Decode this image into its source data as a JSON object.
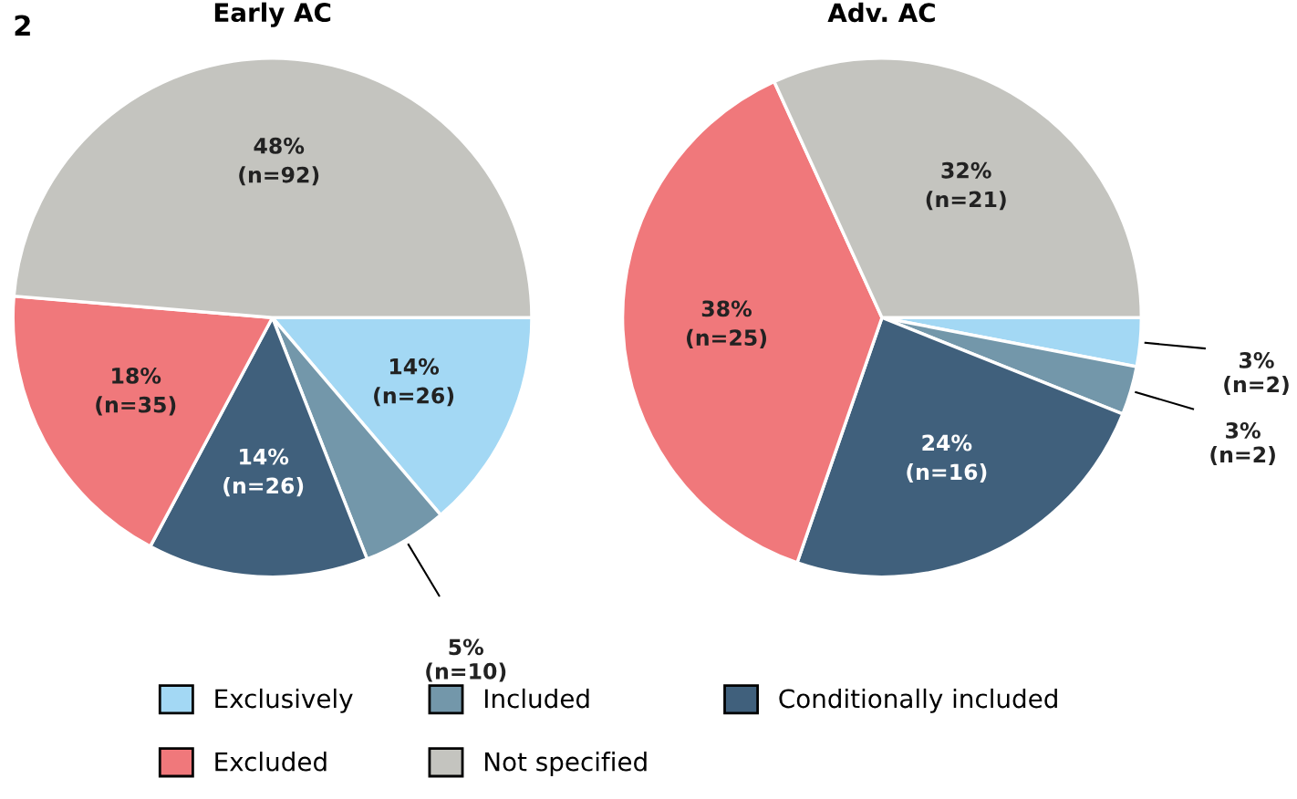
{
  "chart_data": [
    {
      "type": "pie",
      "title": "Early AC",
      "annotations": [
        "2"
      ],
      "legend": "bottom",
      "categories": [
        "Exclusively",
        "Included",
        "Conditionally included",
        "Excluded",
        "Not specified"
      ],
      "values": [
        26,
        10,
        26,
        35,
        92
      ],
      "value_labels": [
        "14%\n(n=26)",
        "5%\n(n=10)",
        "14%\n(n=26)",
        "18%\n(n=35)",
        "48%\n(n=92)"
      ],
      "colors": [
        "#a3d8f4",
        "#7397aa",
        "#40607c",
        "#f0787b",
        "#c4c4bf"
      ]
    },
    {
      "type": "pie",
      "title": "Adv. AC",
      "values": [
        2,
        2,
        16,
        25,
        21
      ],
      "value_labels": [
        "3%\n(n=2)",
        "3%\n(n=2)",
        "24%\n(n=16)",
        "38%\n(n=25)",
        "32%\n(n=21)"
      ],
      "colors": [
        "#a3d8f4",
        "#7397aa",
        "#40607c",
        "#f0787b",
        "#c4c4bf"
      ]
    }
  ]
}
